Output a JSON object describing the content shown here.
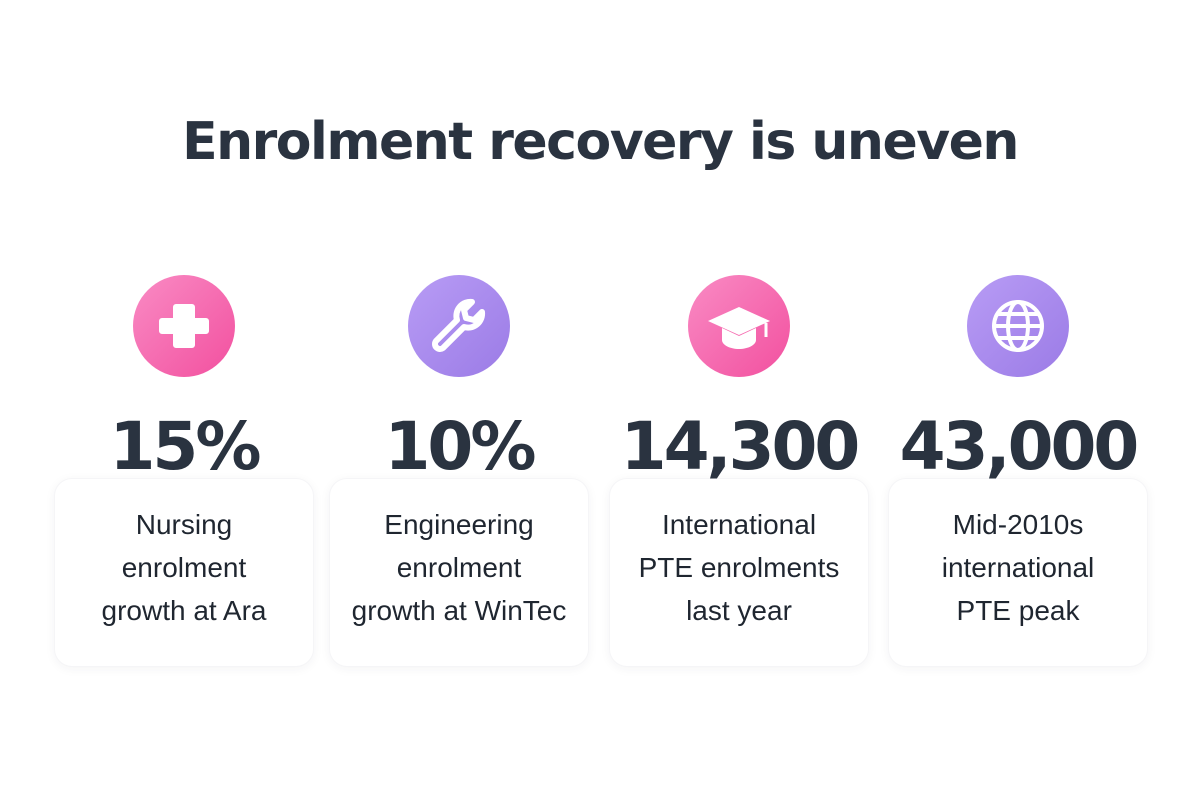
{
  "title": "Enrolment recovery is uneven",
  "stats": [
    {
      "value": "15%",
      "label_lines": [
        "Nursing",
        "enrolment",
        "growth at Ara"
      ]
    },
    {
      "value": "10%",
      "label_lines": [
        "Engineering",
        "enrolment",
        "growth at WinTec"
      ]
    },
    {
      "value": "14,300",
      "label_lines": [
        "International",
        "PTE enrolments",
        "last year"
      ]
    },
    {
      "value": "43,000",
      "label_lines": [
        "Mid-2010s",
        "international",
        "PTE peak"
      ]
    }
  ]
}
